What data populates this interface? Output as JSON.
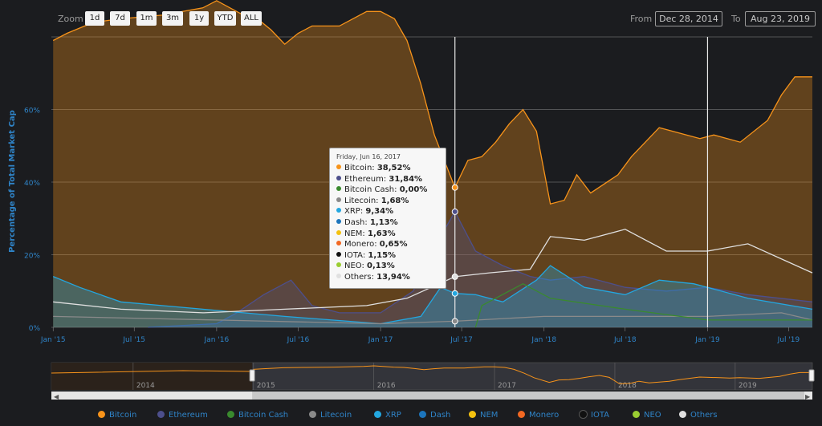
{
  "toolbar": {
    "zoom_label": "Zoom",
    "zoom_buttons": [
      "1d",
      "7d",
      "1m",
      "3m",
      "1y",
      "YTD",
      "ALL"
    ],
    "from_label": "From",
    "from_value": "Dec 28, 2014",
    "to_label": "To",
    "to_value": "Aug 23, 2019"
  },
  "tooltip": {
    "date": "Friday, Jun 16, 2017",
    "rows": [
      {
        "name": "Bitcoin",
        "value": "38,52%",
        "color": "#f7931a"
      },
      {
        "name": "Ethereum",
        "value": "31,84%",
        "color": "#4d4f8c"
      },
      {
        "name": "Bitcoin Cash",
        "value": "0,00%",
        "color": "#3a8a2e"
      },
      {
        "name": "Litecoin",
        "value": "1,68%",
        "color": "#8a8a8a"
      },
      {
        "name": "XRP",
        "value": "9,34%",
        "color": "#23a7e0"
      },
      {
        "name": "Dash",
        "value": "1,13%",
        "color": "#1c75bc"
      },
      {
        "name": "NEM",
        "value": "1,63%",
        "color": "#f4c10f"
      },
      {
        "name": "Monero",
        "value": "0,65%",
        "color": "#f26822"
      },
      {
        "name": "IOTA",
        "value": "1,15%",
        "color": "#111111"
      },
      {
        "name": "NEO",
        "value": "0,13%",
        "color": "#9acd32"
      },
      {
        "name": "Others",
        "value": "13,94%",
        "color": "#e0e0e0"
      }
    ]
  },
  "legend": [
    {
      "name": "Bitcoin",
      "color": "#f7931a"
    },
    {
      "name": "Ethereum",
      "color": "#4d4f8c"
    },
    {
      "name": "Bitcoin Cash",
      "color": "#3a8a2e"
    },
    {
      "name": "Litecoin",
      "color": "#8a8a8a"
    },
    {
      "name": "XRP",
      "color": "#23a7e0"
    },
    {
      "name": "Dash",
      "color": "#1c75bc"
    },
    {
      "name": "NEM",
      "color": "#f4c10f"
    },
    {
      "name": "Monero",
      "color": "#f26822"
    },
    {
      "name": "IOTA",
      "color": "#111111"
    },
    {
      "name": "NEO",
      "color": "#9acd32"
    },
    {
      "name": "Others",
      "color": "#e0e0e0"
    }
  ],
  "chart_data": {
    "type": "area",
    "title": "",
    "xlabel": "",
    "ylabel": "Percentage of Total Market Cap",
    "x_range": [
      "2014-12-28",
      "2019-08-23"
    ],
    "ylim": [
      0,
      80
    ],
    "y_ticks": [
      0,
      20,
      40,
      60
    ],
    "y_tick_labels": [
      "0%",
      "20%",
      "40%",
      "60%"
    ],
    "x_ticks": [
      "2015-01-01",
      "2015-07-01",
      "2016-01-01",
      "2016-07-01",
      "2017-01-01",
      "2017-07-01",
      "2018-01-01",
      "2018-07-01",
      "2019-01-01",
      "2019-07-01"
    ],
    "x_tick_labels": [
      "Jan '15",
      "Jul '15",
      "Jan '16",
      "Jul '16",
      "Jan '17",
      "Jul '17",
      "Jan '18",
      "Jul '18",
      "Jan '19",
      "Jul '19"
    ],
    "grid": true,
    "legend_position": "bottom",
    "crosshair_dates": [
      "2017-06-16",
      "2019-01-01"
    ],
    "series": [
      {
        "name": "Bitcoin",
        "color": "#f7931a",
        "fill": true,
        "points": [
          [
            "2015-01-01",
            79
          ],
          [
            "2015-02-01",
            81
          ],
          [
            "2015-04-01",
            84
          ],
          [
            "2015-06-01",
            85
          ],
          [
            "2015-09-01",
            86
          ],
          [
            "2015-12-01",
            88
          ],
          [
            "2016-01-01",
            90
          ],
          [
            "2016-03-01",
            86
          ],
          [
            "2016-04-01",
            85
          ],
          [
            "2016-05-01",
            82
          ],
          [
            "2016-06-01",
            78
          ],
          [
            "2016-07-01",
            81
          ],
          [
            "2016-08-01",
            83
          ],
          [
            "2016-10-01",
            83
          ],
          [
            "2016-12-01",
            87
          ],
          [
            "2017-01-01",
            87
          ],
          [
            "2017-02-01",
            85
          ],
          [
            "2017-03-01",
            79
          ],
          [
            "2017-04-01",
            67
          ],
          [
            "2017-05-01",
            53
          ],
          [
            "2017-06-16",
            38.52
          ],
          [
            "2017-07-15",
            46
          ],
          [
            "2017-08-15",
            47
          ],
          [
            "2017-09-15",
            51
          ],
          [
            "2017-10-15",
            56
          ],
          [
            "2017-11-15",
            60
          ],
          [
            "2017-12-15",
            54
          ],
          [
            "2018-01-15",
            34
          ],
          [
            "2018-02-15",
            35
          ],
          [
            "2018-03-15",
            42
          ],
          [
            "2018-04-15",
            37
          ],
          [
            "2018-06-15",
            42
          ],
          [
            "2018-07-15",
            47
          ],
          [
            "2018-09-15",
            55
          ],
          [
            "2018-11-15",
            53
          ],
          [
            "2018-12-15",
            52
          ],
          [
            "2019-01-15",
            53
          ],
          [
            "2019-03-15",
            51
          ],
          [
            "2019-05-15",
            57
          ],
          [
            "2019-06-15",
            64
          ],
          [
            "2019-07-15",
            69
          ],
          [
            "2019-08-23",
            69
          ]
        ]
      },
      {
        "name": "Ethereum",
        "color": "#4d4f8c",
        "fill": true,
        "points": [
          [
            "2015-08-01",
            0
          ],
          [
            "2016-01-01",
            1
          ],
          [
            "2016-02-15",
            4
          ],
          [
            "2016-04-15",
            9
          ],
          [
            "2016-06-15",
            13
          ],
          [
            "2016-08-01",
            6
          ],
          [
            "2016-10-01",
            4
          ],
          [
            "2017-01-01",
            4
          ],
          [
            "2017-03-15",
            10
          ],
          [
            "2017-05-01",
            22
          ],
          [
            "2017-06-16",
            31.84
          ],
          [
            "2017-08-01",
            21
          ],
          [
            "2017-10-01",
            17
          ],
          [
            "2017-12-01",
            14
          ],
          [
            "2018-01-15",
            13
          ],
          [
            "2018-04-01",
            14
          ],
          [
            "2018-07-01",
            11
          ],
          [
            "2018-10-01",
            10
          ],
          [
            "2019-01-01",
            11
          ],
          [
            "2019-04-01",
            9
          ],
          [
            "2019-08-23",
            7
          ]
        ]
      },
      {
        "name": "XRP",
        "color": "#23a7e0",
        "fill": true,
        "points": [
          [
            "2015-01-01",
            14
          ],
          [
            "2015-03-01",
            11
          ],
          [
            "2015-06-01",
            7
          ],
          [
            "2015-09-01",
            6
          ],
          [
            "2015-12-01",
            5
          ],
          [
            "2016-06-01",
            3
          ],
          [
            "2017-01-01",
            1
          ],
          [
            "2017-04-01",
            3
          ],
          [
            "2017-05-15",
            11
          ],
          [
            "2017-06-16",
            9.34
          ],
          [
            "2017-08-01",
            9
          ],
          [
            "2017-10-01",
            7
          ],
          [
            "2017-12-15",
            13
          ],
          [
            "2018-01-15",
            17
          ],
          [
            "2018-04-01",
            11
          ],
          [
            "2018-07-01",
            9
          ],
          [
            "2018-09-15",
            13
          ],
          [
            "2018-12-01",
            12
          ],
          [
            "2019-01-01",
            11
          ],
          [
            "2019-04-01",
            8
          ],
          [
            "2019-08-23",
            5
          ]
        ]
      },
      {
        "name": "Others",
        "color": "#e0e0e0",
        "fill": false,
        "points": [
          [
            "2015-01-01",
            7
          ],
          [
            "2015-06-01",
            5
          ],
          [
            "2015-12-01",
            4
          ],
          [
            "2016-06-01",
            5
          ],
          [
            "2016-12-01",
            6
          ],
          [
            "2017-03-01",
            8
          ],
          [
            "2017-06-16",
            13.94
          ],
          [
            "2017-09-01",
            15
          ],
          [
            "2017-12-01",
            16
          ],
          [
            "2018-01-15",
            25
          ],
          [
            "2018-04-01",
            24
          ],
          [
            "2018-07-01",
            27
          ],
          [
            "2018-10-01",
            21
          ],
          [
            "2019-01-01",
            21
          ],
          [
            "2019-04-01",
            23
          ],
          [
            "2019-08-23",
            15
          ]
        ]
      },
      {
        "name": "Litecoin",
        "color": "#8a8a8a",
        "fill": false,
        "points": [
          [
            "2015-01-01",
            3
          ],
          [
            "2016-01-01",
            2
          ],
          [
            "2017-01-01",
            1
          ],
          [
            "2017-06-16",
            1.68
          ],
          [
            "2018-01-01",
            3
          ],
          [
            "2019-01-01",
            3
          ],
          [
            "2019-06-15",
            4
          ],
          [
            "2019-08-23",
            2
          ]
        ]
      },
      {
        "name": "Bitcoin Cash",
        "color": "#3a8a2e",
        "fill": false,
        "points": [
          [
            "2017-08-01",
            0
          ],
          [
            "2017-08-15",
            6
          ],
          [
            "2017-11-15",
            12
          ],
          [
            "2018-01-15",
            8
          ],
          [
            "2018-07-01",
            5
          ],
          [
            "2019-01-01",
            2
          ],
          [
            "2019-08-23",
            2
          ]
        ]
      }
    ]
  }
}
